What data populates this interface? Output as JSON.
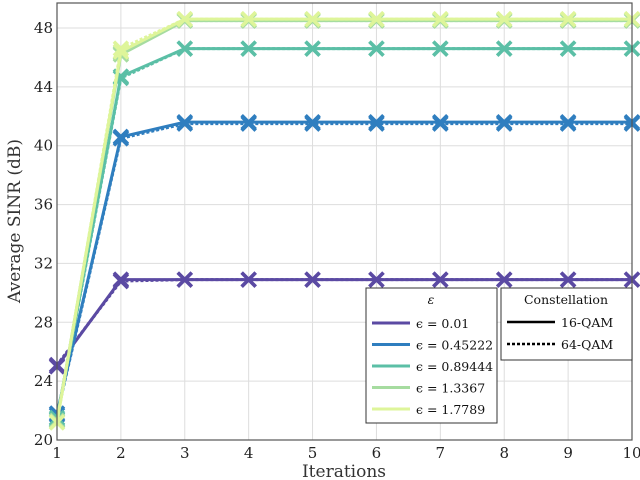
{
  "chart_data": {
    "type": "line",
    "title": "",
    "xlabel": "Iterations",
    "ylabel": "Average SINR (dB)",
    "xlim": [
      1,
      10
    ],
    "ylim": [
      20,
      49.7
    ],
    "xticks": [
      1,
      2,
      3,
      4,
      5,
      6,
      7,
      8,
      9,
      10
    ],
    "yticks": [
      20,
      24,
      28,
      32,
      36,
      40,
      44,
      48
    ],
    "grid": true,
    "x": [
      1,
      2,
      3,
      4,
      5,
      6,
      7,
      8,
      9,
      10
    ],
    "legend_eps_title": "ε",
    "legend_const_title": "Constellation",
    "legend_const": [
      {
        "label": "16-QAM",
        "style": "solid"
      },
      {
        "label": "64-QAM",
        "style": "dotted"
      }
    ],
    "series": [
      {
        "name": "ϵ = 0.01",
        "color": "#5b4aa3",
        "qam16": [
          25.0,
          30.9,
          30.9,
          30.9,
          30.9,
          30.9,
          30.9,
          30.9,
          30.9,
          30.9
        ],
        "qam64": [
          25.1,
          30.8,
          30.9,
          30.9,
          30.9,
          30.9,
          30.9,
          30.9,
          30.9,
          30.9
        ]
      },
      {
        "name": "ϵ = 0.45222",
        "color": "#2f7ebf",
        "qam16": [
          21.8,
          40.6,
          41.6,
          41.6,
          41.6,
          41.6,
          41.6,
          41.6,
          41.6,
          41.6
        ],
        "qam64": [
          21.7,
          40.5,
          41.5,
          41.5,
          41.5,
          41.5,
          41.5,
          41.5,
          41.5,
          41.5
        ]
      },
      {
        "name": "ϵ = 0.89444",
        "color": "#5bbfa6",
        "qam16": [
          21.5,
          44.7,
          46.6,
          46.6,
          46.6,
          46.6,
          46.6,
          46.6,
          46.6,
          46.6
        ],
        "qam64": [
          21.4,
          44.6,
          46.6,
          46.6,
          46.6,
          46.6,
          46.6,
          46.6,
          46.6,
          46.6
        ]
      },
      {
        "name": "ϵ = 1.3367",
        "color": "#a6dca0",
        "qam16": [
          21.3,
          46.2,
          48.5,
          48.5,
          48.5,
          48.5,
          48.5,
          48.5,
          48.5,
          48.5
        ],
        "qam64": [
          21.3,
          46.3,
          48.5,
          48.5,
          48.5,
          48.5,
          48.5,
          48.5,
          48.5,
          48.5
        ]
      },
      {
        "name": "ϵ = 1.7789",
        "color": "#def59a",
        "qam16": [
          21.2,
          46.4,
          48.6,
          48.6,
          48.6,
          48.6,
          48.6,
          48.6,
          48.6,
          48.6
        ],
        "qam64": [
          21.2,
          46.6,
          48.6,
          48.6,
          48.6,
          48.6,
          48.6,
          48.6,
          48.6,
          48.6
        ]
      }
    ]
  }
}
